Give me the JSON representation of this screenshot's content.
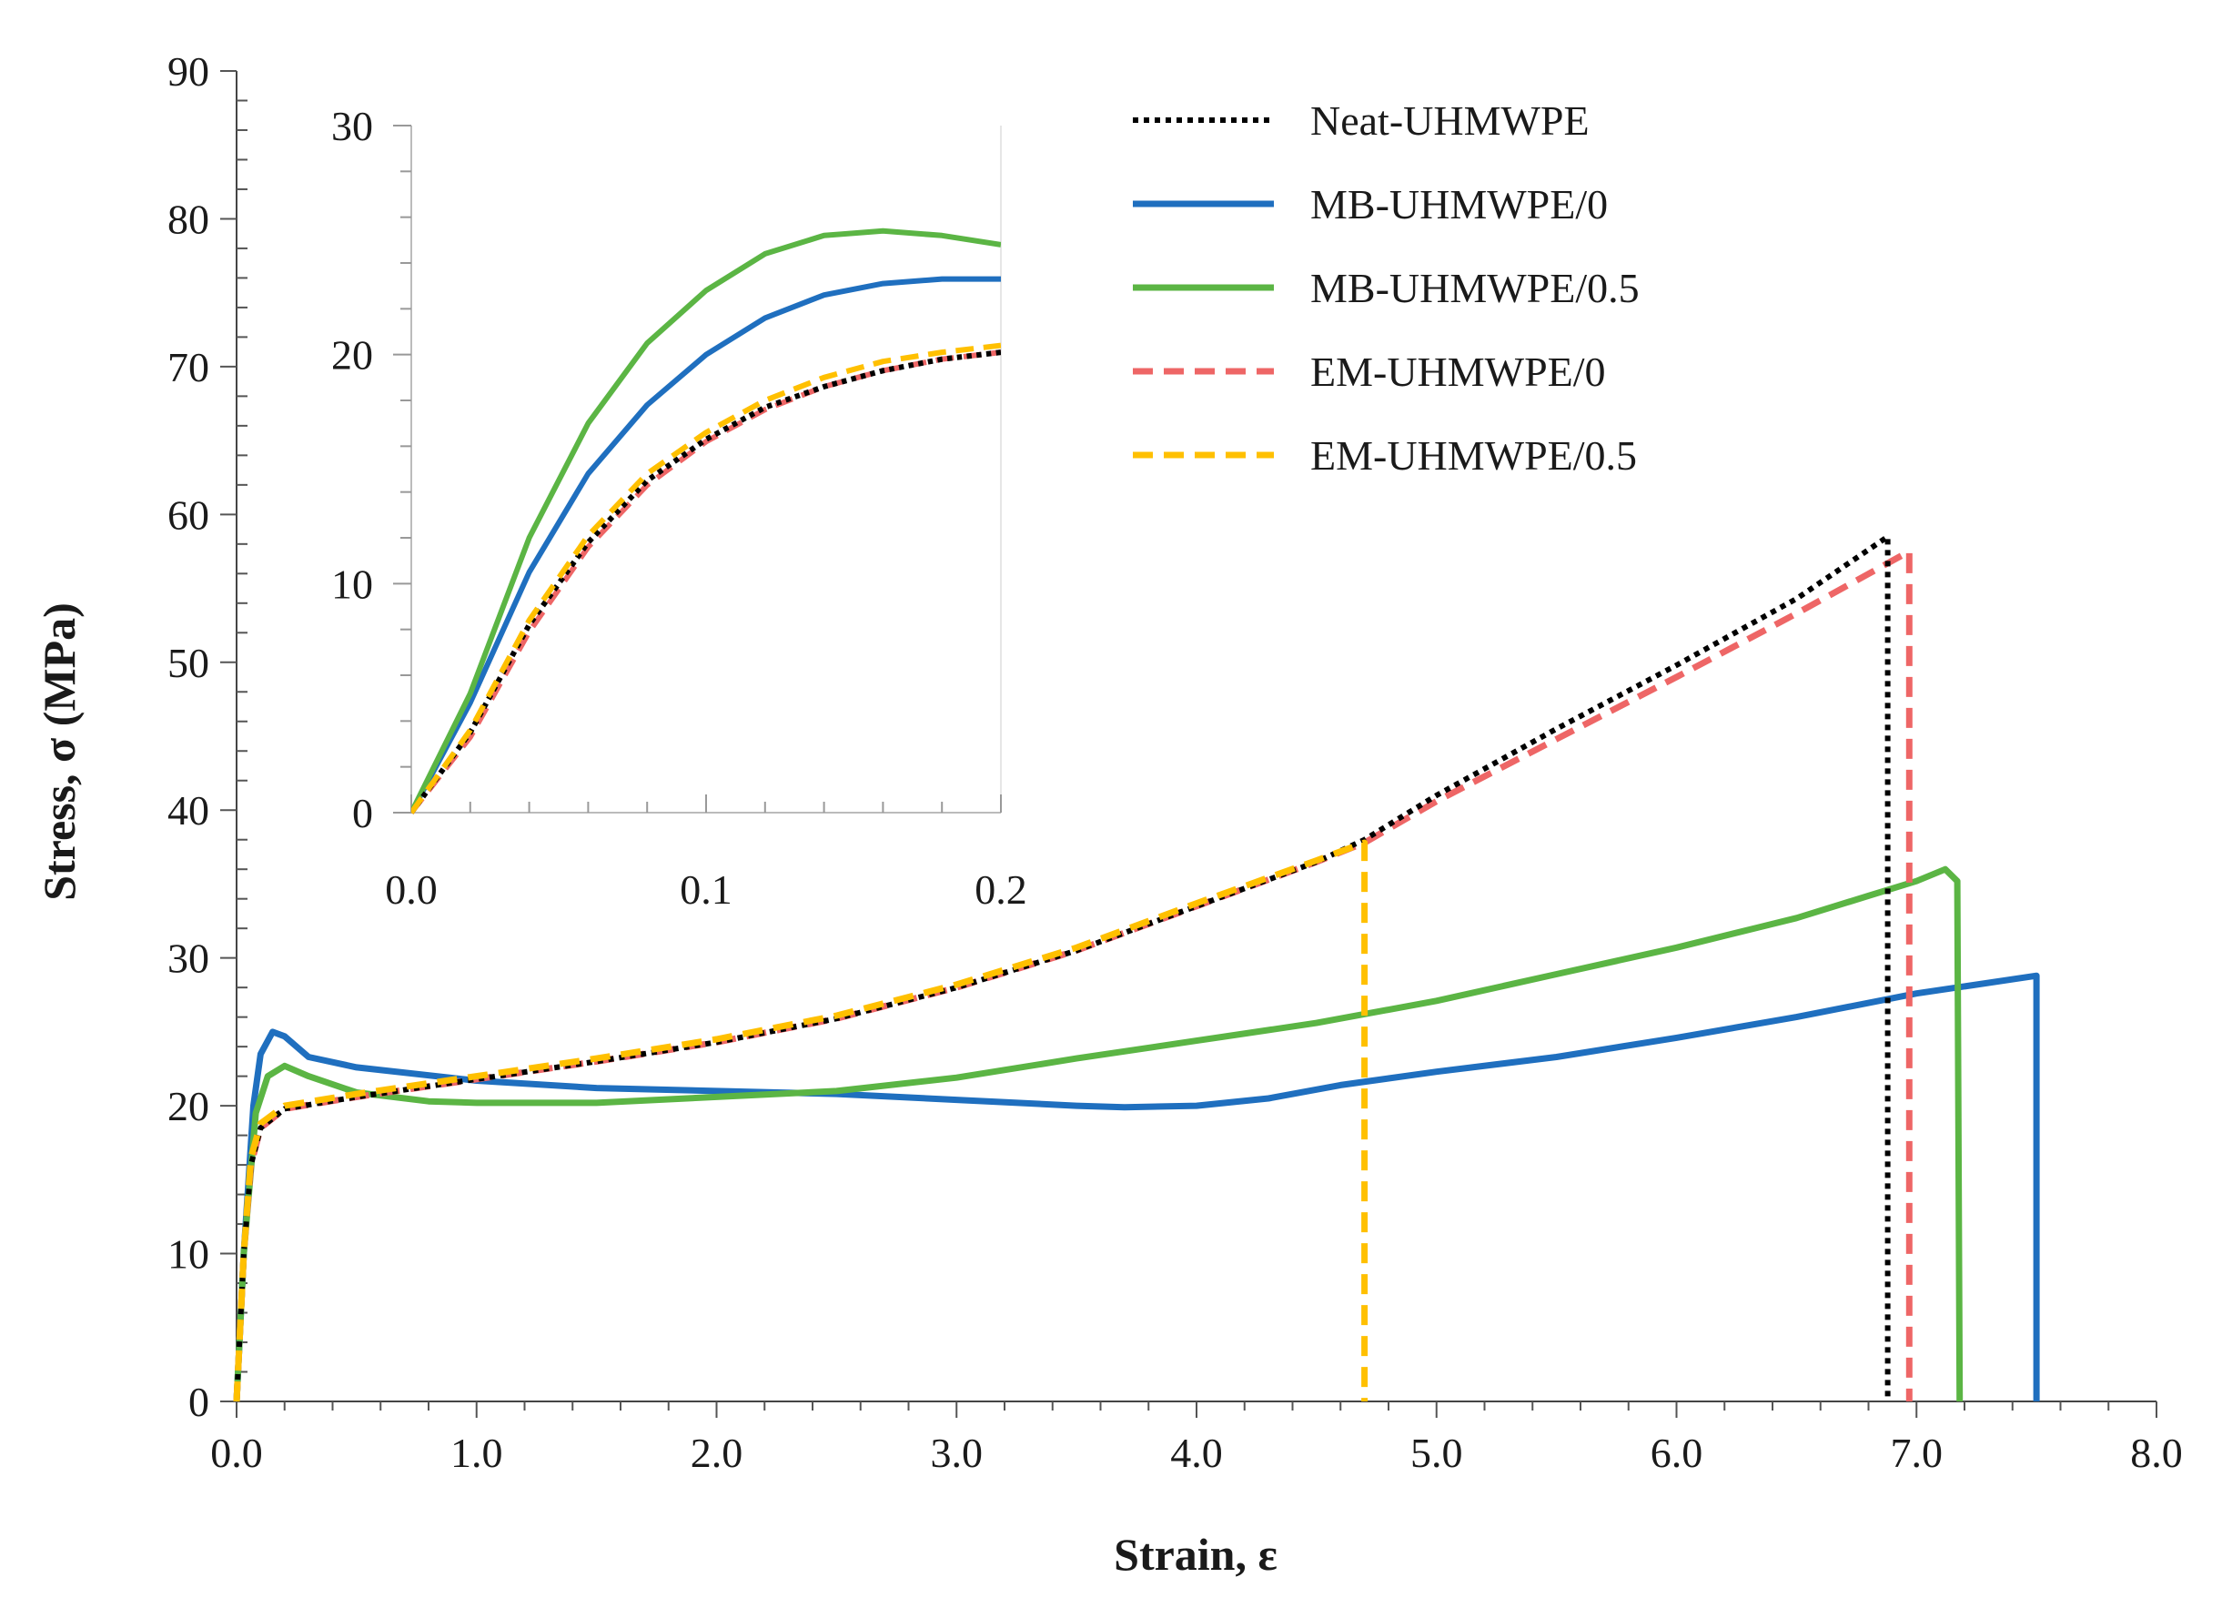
{
  "chart_data": [
    {
      "type": "line",
      "title": "",
      "xlabel": "Strain, ε",
      "ylabel": "Stress, σ (MPa)",
      "xlim": [
        0,
        8
      ],
      "ylim": [
        0,
        90
      ],
      "x_ticks": [
        "0.0",
        "1.0",
        "2.0",
        "3.0",
        "4.0",
        "5.0",
        "6.0",
        "7.0",
        "8.0"
      ],
      "y_ticks": [
        "0",
        "10",
        "20",
        "30",
        "40",
        "50",
        "60",
        "70",
        "80",
        "90"
      ],
      "grid": false,
      "legend_position": "top-right",
      "series": [
        {
          "name": "Neat-UHMWPE",
          "color": "#000000",
          "style": "dotted",
          "points": [
            [
              0,
              0
            ],
            [
              0.03,
              10
            ],
            [
              0.06,
              16
            ],
            [
              0.1,
              18.5
            ],
            [
              0.2,
              19.8
            ],
            [
              0.5,
              20.6
            ],
            [
              1.0,
              21.8
            ],
            [
              1.5,
              23.0
            ],
            [
              2.0,
              24.3
            ],
            [
              2.5,
              25.9
            ],
            [
              3.0,
              28.0
            ],
            [
              3.5,
              30.5
            ],
            [
              4.0,
              33.5
            ],
            [
              4.5,
              36.5
            ],
            [
              4.7,
              38.0
            ],
            [
              5.0,
              41.0
            ],
            [
              5.5,
              45.5
            ],
            [
              6.0,
              49.8
            ],
            [
              6.5,
              54.3
            ],
            [
              6.88,
              58.5
            ],
            [
              6.88,
              0
            ]
          ]
        },
        {
          "name": "MB-UHMWPE/0",
          "color": "#1f6fbf",
          "style": "solid",
          "points": [
            [
              0,
              0
            ],
            [
              0.03,
              10
            ],
            [
              0.07,
              20
            ],
            [
              0.1,
              23.5
            ],
            [
              0.15,
              25.0
            ],
            [
              0.2,
              24.7
            ],
            [
              0.3,
              23.3
            ],
            [
              0.5,
              22.6
            ],
            [
              1.0,
              21.7
            ],
            [
              1.5,
              21.2
            ],
            [
              2.0,
              21.0
            ],
            [
              2.5,
              20.8
            ],
            [
              3.0,
              20.4
            ],
            [
              3.5,
              20.0
            ],
            [
              3.7,
              19.9
            ],
            [
              4.0,
              20.0
            ],
            [
              4.3,
              20.5
            ],
            [
              4.6,
              21.4
            ],
            [
              5.0,
              22.3
            ],
            [
              5.5,
              23.3
            ],
            [
              6.0,
              24.6
            ],
            [
              6.5,
              26.0
            ],
            [
              7.0,
              27.6
            ],
            [
              7.5,
              28.8
            ],
            [
              7.5,
              0
            ]
          ]
        },
        {
          "name": "MB-UHMWPE/0.5",
          "color": "#5bb544",
          "style": "solid",
          "points": [
            [
              0,
              0
            ],
            [
              0.03,
              10
            ],
            [
              0.08,
              19.5
            ],
            [
              0.13,
              22.0
            ],
            [
              0.2,
              22.7
            ],
            [
              0.3,
              22.0
            ],
            [
              0.5,
              20.9
            ],
            [
              0.8,
              20.3
            ],
            [
              1.0,
              20.2
            ],
            [
              1.5,
              20.2
            ],
            [
              2.0,
              20.6
            ],
            [
              2.5,
              21.0
            ],
            [
              3.0,
              21.9
            ],
            [
              3.5,
              23.2
            ],
            [
              4.0,
              24.4
            ],
            [
              4.5,
              25.6
            ],
            [
              5.0,
              27.1
            ],
            [
              5.5,
              28.9
            ],
            [
              6.0,
              30.7
            ],
            [
              6.5,
              32.7
            ],
            [
              6.8,
              34.2
            ],
            [
              7.0,
              35.2
            ],
            [
              7.12,
              36.0
            ],
            [
              7.17,
              35.2
            ],
            [
              7.18,
              0
            ]
          ]
        },
        {
          "name": "EM-UHMWPE/0",
          "color": "#ee6666",
          "style": "dashed",
          "points": [
            [
              0,
              0
            ],
            [
              0.03,
              10
            ],
            [
              0.06,
              16
            ],
            [
              0.1,
              18.5
            ],
            [
              0.2,
              19.8
            ],
            [
              0.5,
              20.6
            ],
            [
              1.0,
              21.8
            ],
            [
              1.5,
              23.0
            ],
            [
              2.0,
              24.3
            ],
            [
              2.5,
              25.9
            ],
            [
              3.0,
              28.0
            ],
            [
              3.5,
              30.5
            ],
            [
              4.0,
              33.5
            ],
            [
              4.5,
              36.5
            ],
            [
              4.7,
              37.8
            ],
            [
              5.0,
              40.6
            ],
            [
              5.5,
              44.8
            ],
            [
              6.0,
              49.0
            ],
            [
              6.5,
              53.3
            ],
            [
              6.97,
              57.5
            ],
            [
              6.97,
              0
            ]
          ]
        },
        {
          "name": "EM-UHMWPE/0.5",
          "color": "#ffc000",
          "style": "dashed",
          "points": [
            [
              0,
              0
            ],
            [
              0.03,
              10
            ],
            [
              0.06,
              16.5
            ],
            [
              0.1,
              18.8
            ],
            [
              0.2,
              20.0
            ],
            [
              0.5,
              20.8
            ],
            [
              1.0,
              22.0
            ],
            [
              1.5,
              23.2
            ],
            [
              2.0,
              24.5
            ],
            [
              2.5,
              26.1
            ],
            [
              3.0,
              28.2
            ],
            [
              3.5,
              30.7
            ],
            [
              4.0,
              33.7
            ],
            [
              4.5,
              36.6
            ],
            [
              4.7,
              37.8
            ],
            [
              4.7,
              0
            ]
          ]
        }
      ]
    },
    {
      "type": "line",
      "title": "",
      "xlabel": "",
      "ylabel": "",
      "xlim": [
        0,
        0.2
      ],
      "ylim": [
        0,
        30
      ],
      "x_ticks": [
        "0.0",
        "0.1",
        "0.2"
      ],
      "y_ticks": [
        "0",
        "10",
        "20",
        "30"
      ],
      "grid": false,
      "position": "inset",
      "series": [
        {
          "name": "Neat-UHMWPE",
          "color": "#000000",
          "style": "dotted",
          "points": [
            [
              0,
              0
            ],
            [
              0.02,
              3.5
            ],
            [
              0.04,
              8.2
            ],
            [
              0.06,
              11.8
            ],
            [
              0.08,
              14.5
            ],
            [
              0.1,
              16.3
            ],
            [
              0.12,
              17.7
            ],
            [
              0.14,
              18.6
            ],
            [
              0.16,
              19.3
            ],
            [
              0.18,
              19.8
            ],
            [
              0.2,
              20.1
            ]
          ]
        },
        {
          "name": "MB-UHMWPE/0",
          "color": "#1f6fbf",
          "style": "solid",
          "points": [
            [
              0,
              0
            ],
            [
              0.02,
              4.8
            ],
            [
              0.04,
              10.5
            ],
            [
              0.06,
              14.8
            ],
            [
              0.08,
              17.8
            ],
            [
              0.1,
              20.0
            ],
            [
              0.12,
              21.6
            ],
            [
              0.14,
              22.6
            ],
            [
              0.16,
              23.1
            ],
            [
              0.18,
              23.3
            ],
            [
              0.2,
              23.3
            ]
          ]
        },
        {
          "name": "MB-UHMWPE/0.5",
          "color": "#5bb544",
          "style": "solid",
          "points": [
            [
              0,
              0
            ],
            [
              0.02,
              5.2
            ],
            [
              0.04,
              12.0
            ],
            [
              0.06,
              17.0
            ],
            [
              0.08,
              20.5
            ],
            [
              0.1,
              22.8
            ],
            [
              0.12,
              24.4
            ],
            [
              0.14,
              25.2
            ],
            [
              0.16,
              25.4
            ],
            [
              0.18,
              25.2
            ],
            [
              0.2,
              24.8
            ]
          ]
        },
        {
          "name": "EM-UHMWPE/0",
          "color": "#ee6666",
          "style": "dashed",
          "points": [
            [
              0,
              0
            ],
            [
              0.02,
              3.3
            ],
            [
              0.04,
              7.9
            ],
            [
              0.06,
              11.6
            ],
            [
              0.08,
              14.3
            ],
            [
              0.1,
              16.2
            ],
            [
              0.12,
              17.6
            ],
            [
              0.14,
              18.6
            ],
            [
              0.16,
              19.3
            ],
            [
              0.18,
              19.8
            ],
            [
              0.2,
              20.1
            ]
          ]
        },
        {
          "name": "EM-UHMWPE/0.5",
          "color": "#ffc000",
          "style": "dashed",
          "points": [
            [
              0,
              0
            ],
            [
              0.02,
              3.6
            ],
            [
              0.04,
              8.4
            ],
            [
              0.06,
              12.1
            ],
            [
              0.08,
              14.8
            ],
            [
              0.1,
              16.6
            ],
            [
              0.12,
              18.0
            ],
            [
              0.14,
              19.0
            ],
            [
              0.16,
              19.7
            ],
            [
              0.18,
              20.1
            ],
            [
              0.2,
              20.4
            ]
          ]
        }
      ]
    }
  ]
}
